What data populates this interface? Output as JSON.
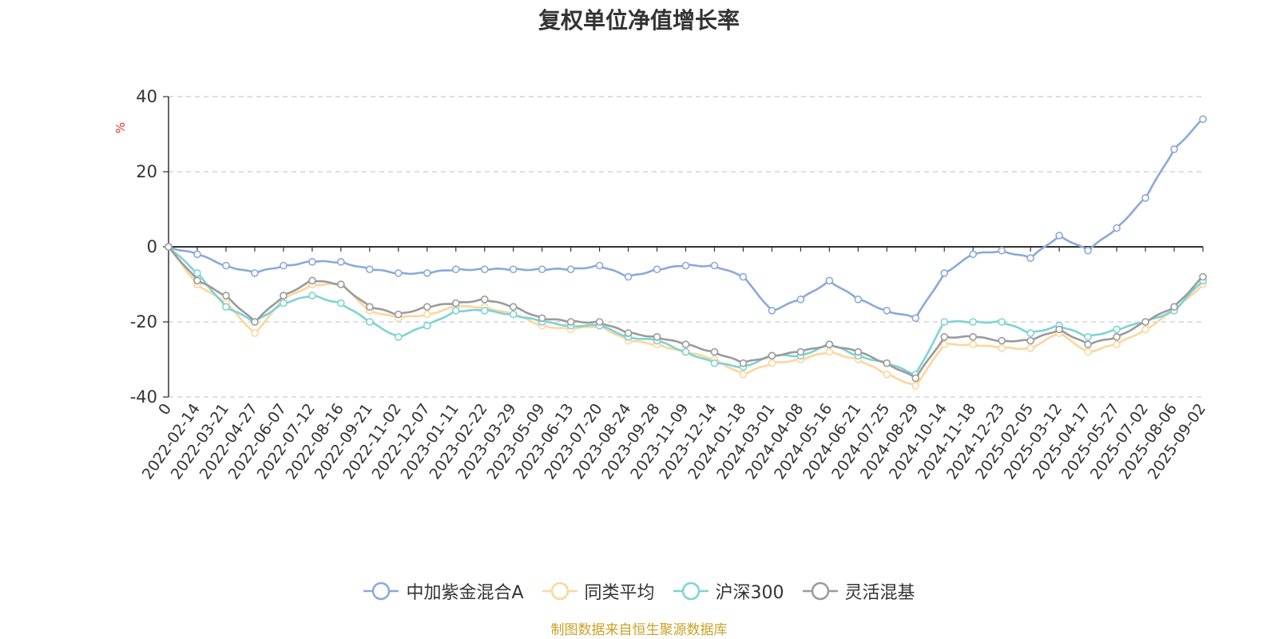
{
  "source_note": "制图数据来自恒生聚源数据库",
  "chart_data": {
    "type": "line",
    "title": "复权单位净值增长率",
    "ylabel": "%",
    "ylim": [
      -40,
      40
    ],
    "yticks": [
      "40",
      "20",
      "0",
      "-20",
      "-40"
    ],
    "grid": true,
    "legend_position": "bottom",
    "categories": [
      "0",
      "2022-02-14",
      "2022-03-21",
      "2022-04-27",
      "2022-06-07",
      "2022-07-12",
      "2022-08-16",
      "2022-09-21",
      "2022-11-02",
      "2022-12-07",
      "2023-01-11",
      "2023-02-22",
      "2023-03-29",
      "2023-05-09",
      "2023-06-13",
      "2023-07-20",
      "2023-08-24",
      "2023-09-28",
      "2023-11-09",
      "2023-12-14",
      "2024-01-18",
      "2024-03-01",
      "2024-04-08",
      "2024-05-16",
      "2024-06-21",
      "2024-07-25",
      "2024-08-29",
      "2024-10-14",
      "2024-11-18",
      "2024-12-23",
      "2025-02-05",
      "2025-03-12",
      "2025-04-17",
      "2025-05-27",
      "2025-07-02",
      "2025-08-06",
      "2025-09-02"
    ],
    "series": [
      {
        "name": "中加紫金混合A",
        "color": "#8ba9d9",
        "values": [
          0,
          -2,
          -5,
          -7,
          -5,
          -4,
          -4,
          -6,
          -7,
          -7,
          -6,
          -6,
          -6,
          -6,
          -6,
          -5,
          -8,
          -6,
          -5,
          -5,
          -8,
          -17,
          -14,
          -9,
          -14,
          -17,
          -19,
          -7,
          -2,
          -1,
          -3,
          3,
          -1,
          5,
          13,
          26,
          34
        ]
      },
      {
        "name": "同类平均",
        "color": "#fdd69a",
        "values": [
          0,
          -10,
          -15,
          -23,
          -14,
          -10,
          -10,
          -17,
          -19,
          -18,
          -16,
          -16,
          -18,
          -21,
          -22,
          -21,
          -25,
          -26,
          -28,
          -30,
          -34,
          -31,
          -30,
          -28,
          -30,
          -34,
          -37,
          -26,
          -26,
          -27,
          -27,
          -23,
          -28,
          -26,
          -22,
          -17,
          -10
        ]
      },
      {
        "name": "沪深300",
        "color": "#7dd3d4",
        "values": [
          0,
          -7,
          -16,
          -20,
          -15,
          -13,
          -15,
          -20,
          -24,
          -21,
          -17,
          -17,
          -18,
          -20,
          -21,
          -21,
          -24,
          -25,
          -28,
          -31,
          -32,
          -29,
          -29,
          -26,
          -29,
          -31,
          -34,
          -20,
          -20,
          -20,
          -23,
          -21,
          -24,
          -22,
          -20,
          -17,
          -9
        ]
      },
      {
        "name": "灵活混基",
        "color": "#9b9b9b",
        "values": [
          0,
          -9,
          -13,
          -20,
          -13,
          -9,
          -10,
          -16,
          -18,
          -16,
          -15,
          -14,
          -16,
          -19,
          -20,
          -20,
          -23,
          -24,
          -26,
          -28,
          -31,
          -29,
          -28,
          -26,
          -28,
          -31,
          -35,
          -24,
          -24,
          -25,
          -25,
          -22,
          -26,
          -24,
          -20,
          -16,
          -8
        ]
      }
    ]
  }
}
